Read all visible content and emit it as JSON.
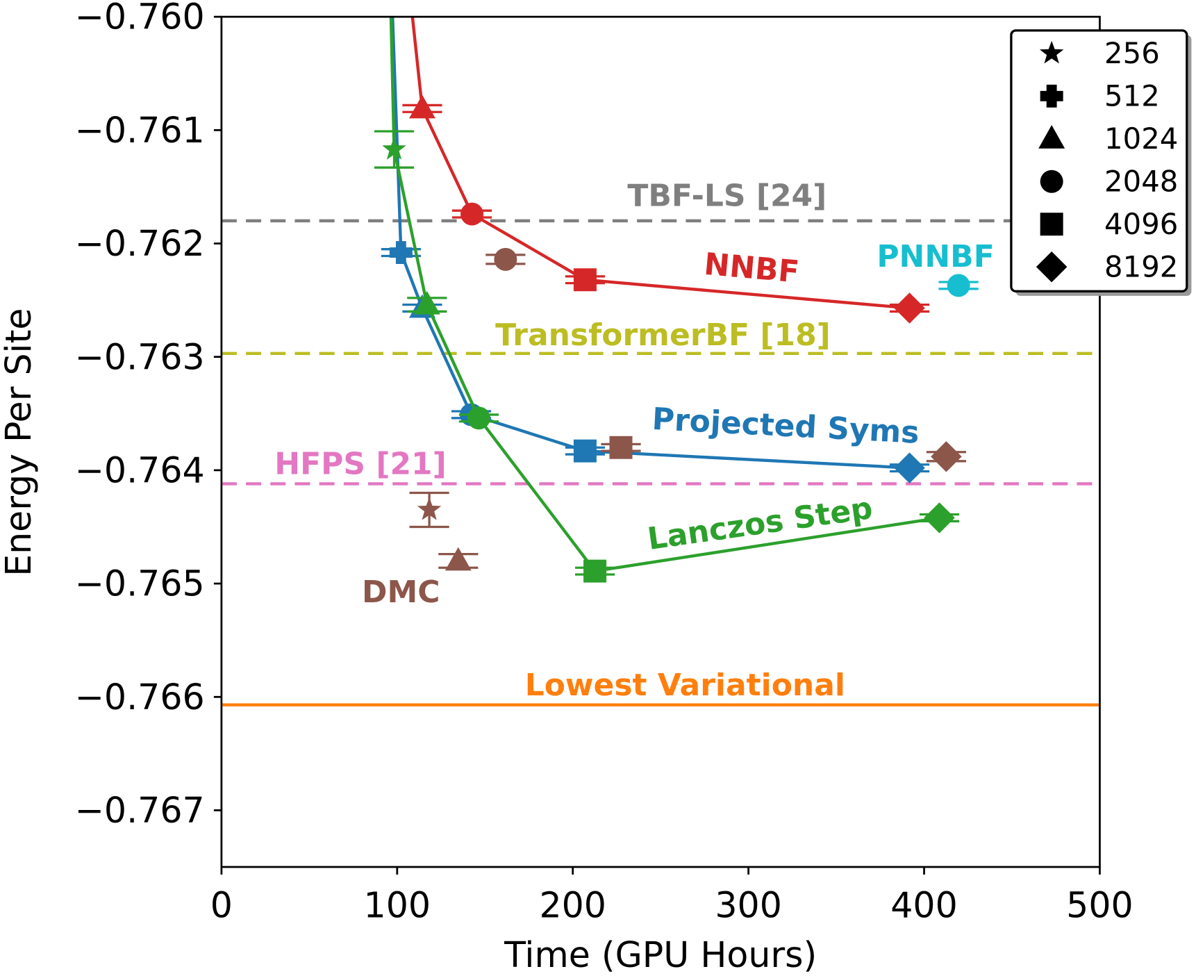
{
  "chart_data": {
    "type": "scatter",
    "xlabel": "Time (GPU Hours)",
    "ylabel": "Energy Per Site",
    "xlim": [
      0,
      500
    ],
    "ylim": [
      -0.7675,
      -0.76
    ],
    "xticks": [
      0,
      100,
      200,
      300,
      400,
      500
    ],
    "xtick_labels": [
      "0",
      "100",
      "200",
      "300",
      "400",
      "500"
    ],
    "yticks": [
      -0.76,
      -0.761,
      -0.762,
      -0.763,
      -0.764,
      -0.765,
      -0.766,
      -0.767
    ],
    "ytick_labels": [
      "−0.760",
      "−0.761",
      "−0.762",
      "−0.763",
      "−0.764",
      "−0.765",
      "−0.766",
      "−0.767"
    ],
    "grid": false,
    "legend": {
      "placement": "top-right",
      "title": "",
      "entries": [
        {
          "marker": "star",
          "label": "256"
        },
        {
          "marker": "plus",
          "label": "512"
        },
        {
          "marker": "triangle",
          "label": "1024"
        },
        {
          "marker": "circle",
          "label": "2048"
        },
        {
          "marker": "square",
          "label": "4096"
        },
        {
          "marker": "diamond",
          "label": "8192"
        }
      ]
    },
    "reference_lines": [
      {
        "label": "TBF-LS [24]",
        "y": -0.7618,
        "color": "#7f7f7f",
        "style": "dashed"
      },
      {
        "label": "TransformerBF [18]",
        "y": -0.76297,
        "color": "#bcbd22",
        "style": "dashed"
      },
      {
        "label": "HFPS [21]",
        "y": -0.76412,
        "color": "#e377c2",
        "style": "dashed"
      },
      {
        "label": "Lowest Variational",
        "y": -0.76607,
        "color": "#ff7f0e",
        "style": "solid"
      }
    ],
    "series": [
      {
        "name": "NNBF",
        "color": "#d62728",
        "connected": true,
        "start_x": 108.7,
        "points": [
          {
            "x": 114.3,
            "y": -0.76081,
            "marker": "triangle",
            "err": 3e-05
          },
          {
            "x": 142.6,
            "y": -0.76174,
            "marker": "circle",
            "err": 3e-05
          },
          {
            "x": 207.0,
            "y": -0.76232,
            "marker": "square",
            "err": 3e-05
          },
          {
            "x": 391.7,
            "y": -0.76257,
            "marker": "diamond",
            "err": 3e-05
          }
        ]
      },
      {
        "name": "Projected Syms",
        "color": "#1f77b4",
        "connected": true,
        "start_x": 97.4,
        "points": [
          {
            "x": 102.2,
            "y": -0.76208,
            "marker": "plus",
            "err": 3e-05
          },
          {
            "x": 114.3,
            "y": -0.76257,
            "marker": "triangle",
            "err": 3e-05
          },
          {
            "x": 142.2,
            "y": -0.76351,
            "marker": "circle",
            "err": 3e-05
          },
          {
            "x": 207.0,
            "y": -0.76383,
            "marker": "square",
            "err": 3e-05
          },
          {
            "x": 391.7,
            "y": -0.76398,
            "marker": "diamond",
            "err": 3e-05
          }
        ]
      },
      {
        "name": "Lanczos Step",
        "color": "#2ca02c",
        "connected": true,
        "start_x": 96.5,
        "points": [
          {
            "x": 98.3,
            "y": -0.76117,
            "marker": "star",
            "err": 0.00016
          },
          {
            "x": 117.0,
            "y": -0.76254,
            "marker": "triangle",
            "err": 6e-05
          },
          {
            "x": 146.5,
            "y": -0.76354,
            "marker": "circle",
            "err": 3e-05
          },
          {
            "x": 212.6,
            "y": -0.76489,
            "marker": "square",
            "err": 3e-05
          },
          {
            "x": 408.7,
            "y": -0.76442,
            "marker": "diamond",
            "err": 3e-05
          }
        ]
      },
      {
        "name": "DMC",
        "color": "#8c564b",
        "connected": false,
        "points": [
          {
            "x": 118.3,
            "y": -0.76435,
            "marker": "star",
            "err": 0.00015
          },
          {
            "x": 134.8,
            "y": -0.7648,
            "marker": "triangle",
            "err": 6e-05
          },
          {
            "x": 161.7,
            "y": -0.76214,
            "marker": "circle",
            "err": 4e-05
          },
          {
            "x": 227.4,
            "y": -0.7638,
            "marker": "square",
            "err": 3e-05
          },
          {
            "x": 412.6,
            "y": -0.76388,
            "marker": "diamond",
            "err": 4e-05
          }
        ]
      },
      {
        "name": "PNNBF",
        "color": "#17becf",
        "connected": false,
        "points": [
          {
            "x": 419.6,
            "y": -0.76237,
            "marker": "circle",
            "err": 3e-05
          }
        ]
      }
    ]
  }
}
